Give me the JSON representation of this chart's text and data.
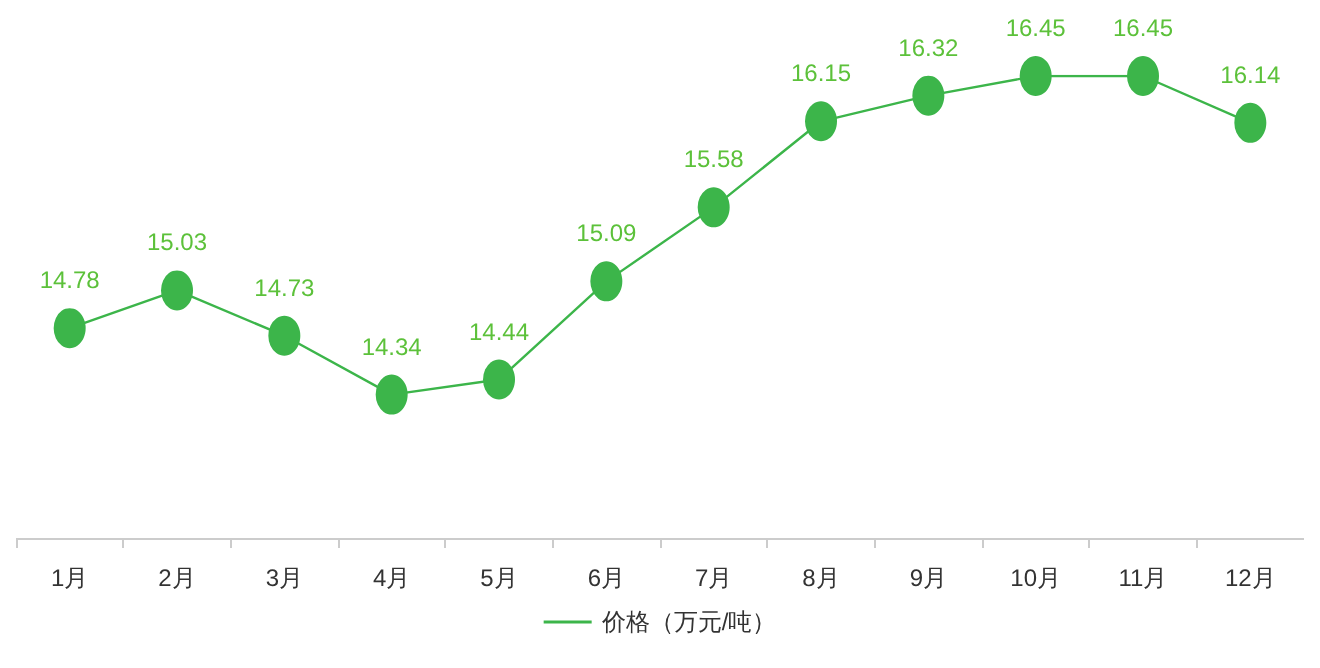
{
  "chart_data": {
    "type": "line",
    "categories": [
      "1月",
      "2月",
      "3月",
      "4月",
      "5月",
      "6月",
      "7月",
      "8月",
      "9月",
      "10月",
      "11月",
      "12月"
    ],
    "series": [
      {
        "name": "价格（万元/吨）",
        "color": "#3cb54a",
        "values": [
          14.78,
          15.03,
          14.73,
          14.34,
          14.44,
          15.09,
          15.58,
          16.15,
          16.32,
          16.45,
          16.45,
          16.14
        ]
      }
    ],
    "tick_labels": "x",
    "data_labels": true,
    "legend": "bottom",
    "marker": "circle",
    "grid": false
  }
}
